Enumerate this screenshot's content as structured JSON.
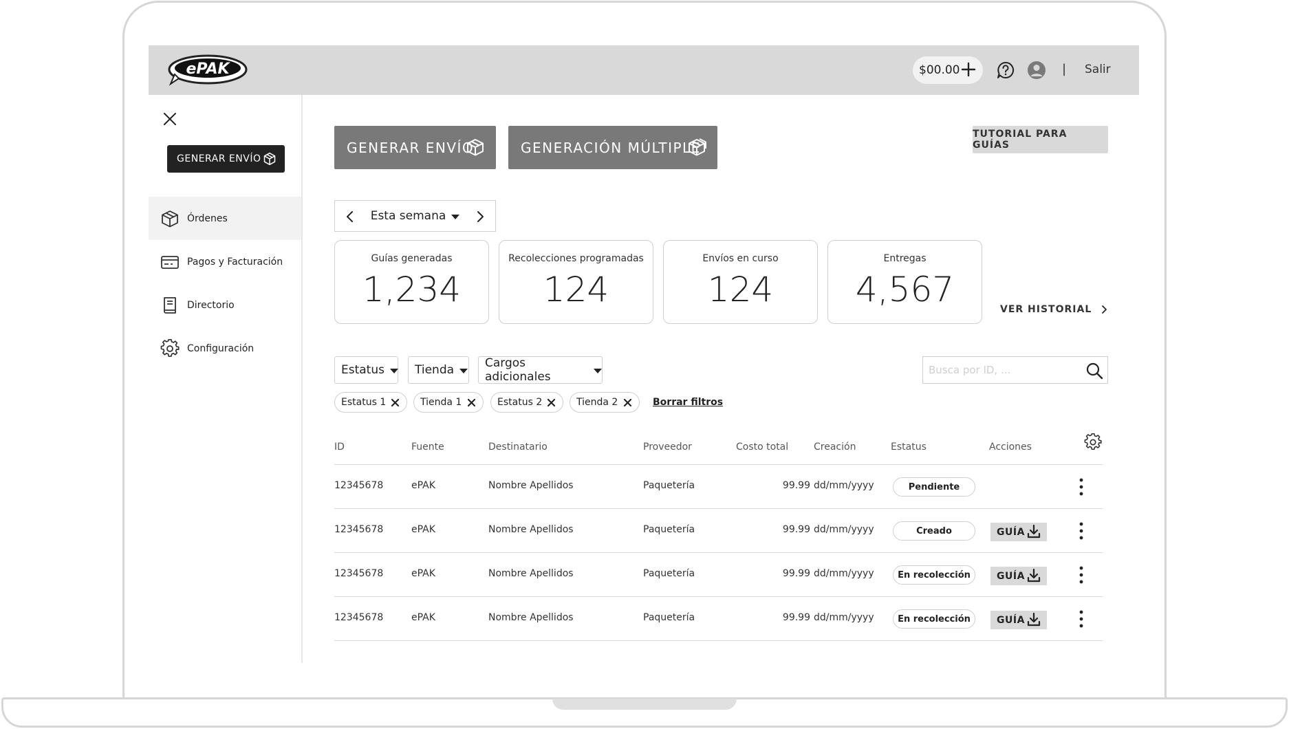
{
  "header": {
    "logo_text": "ePAK",
    "balance": "$00.00",
    "logout": "Salir",
    "divider": "|"
  },
  "sidebar": {
    "generate_label": "GENERAR ENVÍO",
    "items": [
      {
        "label": "Órdenes",
        "icon": "box-icon",
        "active": true
      },
      {
        "label": "Pagos y Facturación",
        "icon": "card-icon",
        "active": false
      },
      {
        "label": "Directorio",
        "icon": "book-icon",
        "active": false
      },
      {
        "label": "Configuración",
        "icon": "gear-icon",
        "active": false
      }
    ]
  },
  "main": {
    "generate_label": "GENERAR ENVÍO",
    "multiple_label": "GENERACIÓN MÚLTIPLE",
    "tutorial_label": "TUTORIAL PARA GUÍAS",
    "week_label": "Esta semana",
    "stats": [
      {
        "label": "Guías generadas",
        "value": "1,234"
      },
      {
        "label": "Recolecciones programadas",
        "value": "124"
      },
      {
        "label": "Envíos en curso",
        "value": "124"
      },
      {
        "label": "Entregas",
        "value": "4,567"
      }
    ],
    "history_label": "VER HISTORIAL",
    "filters": {
      "status_label": "Estatus",
      "store_label": "Tienda",
      "charges_label": "Cargos adicionales",
      "search_placeholder": "Busca por ID, ...",
      "chips": [
        "Estatus 1",
        "Tienda 1",
        "Estatus 2",
        "Tienda 2"
      ],
      "clear_label": "Borrar filtros"
    },
    "table": {
      "headers": [
        "ID",
        "Fuente",
        "Destinatario",
        "Proveedor",
        "Costo total",
        "Creación",
        "Estatus",
        "Acciones"
      ],
      "guide_label": "GUÍA",
      "rows": [
        {
          "id": "12345678",
          "source": "ePAK",
          "recipient": "Nombre Apellidos",
          "provider": "Paquetería",
          "cost": "99.99",
          "date": "dd/mm/yyyy",
          "status": "Pendiente",
          "guide": false
        },
        {
          "id": "12345678",
          "source": "ePAK",
          "recipient": "Nombre Apellidos",
          "provider": "Paquetería",
          "cost": "99.99",
          "date": "dd/mm/yyyy",
          "status": "Creado",
          "guide": true
        },
        {
          "id": "12345678",
          "source": "ePAK",
          "recipient": "Nombre Apellidos",
          "provider": "Paquetería",
          "cost": "99.99",
          "date": "dd/mm/yyyy",
          "status": "En recolección",
          "guide": true
        },
        {
          "id": "12345678",
          "source": "ePAK",
          "recipient": "Nombre Apellidos",
          "provider": "Paquetería",
          "cost": "99.99",
          "date": "dd/mm/yyyy",
          "status": "En recolección",
          "guide": true
        }
      ]
    }
  }
}
